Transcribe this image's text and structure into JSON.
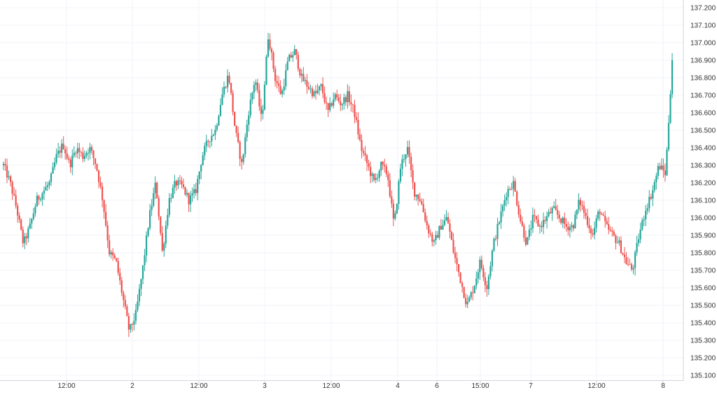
{
  "chart_data": {
    "type": "candlestick",
    "title": "",
    "xlabel": "",
    "ylabel": "",
    "ylim": [
      135.1,
      137.2
    ],
    "y_ticks": [
      137.2,
      137.1,
      137.0,
      136.9,
      136.8,
      136.7,
      136.6,
      136.5,
      136.4,
      136.3,
      136.2,
      136.1,
      136.0,
      135.9,
      135.8,
      135.7,
      135.6,
      135.5,
      135.4,
      135.3,
      135.2,
      135.1
    ],
    "y_tick_labels": [
      "137.200",
      "137.100",
      "137.000",
      "136.900",
      "136.800",
      "136.700",
      "136.600",
      "136.500",
      "136.400",
      "136.300",
      "136.200",
      "136.100",
      "136.000",
      "135.900",
      "135.800",
      "135.700",
      "135.600",
      "135.500",
      "135.400",
      "135.300",
      "135.200",
      "135.100"
    ],
    "x_tick_labels": [
      "12:00",
      "2",
      "12:00",
      "3",
      "12:00",
      "4",
      "6",
      "15:00",
      "7",
      "12:00",
      "8"
    ],
    "grid": true,
    "colors": {
      "up": "#26a69a",
      "down": "#ef5350",
      "grid": "#f0f3fa",
      "axis": "#d1d4dc",
      "text": "#333333"
    },
    "price_path": [
      136.3,
      136.2,
      136.05,
      135.85,
      135.95,
      136.1,
      136.15,
      136.2,
      136.35,
      136.42,
      136.3,
      136.4,
      136.35,
      136.4,
      136.3,
      136.1,
      135.8,
      135.75,
      135.55,
      135.35,
      135.45,
      135.7,
      136.0,
      136.2,
      135.8,
      136.1,
      136.2,
      136.18,
      136.1,
      136.15,
      136.35,
      136.45,
      136.5,
      136.7,
      136.82,
      136.5,
      136.3,
      136.6,
      136.8,
      136.55,
      137.05,
      136.8,
      136.7,
      136.9,
      136.95,
      136.8,
      136.75,
      136.7,
      136.75,
      136.6,
      136.7,
      136.65,
      136.7,
      136.6,
      136.4,
      136.3,
      136.2,
      136.3,
      136.25,
      135.95,
      136.3,
      136.4,
      136.15,
      136.1,
      135.95,
      135.85,
      135.95,
      136.0,
      135.8,
      135.65,
      135.5,
      135.6,
      135.75,
      135.6,
      135.85,
      136.0,
      136.15,
      136.2,
      136.0,
      135.85,
      136.0,
      135.95,
      136.0,
      136.05,
      136.0,
      135.95,
      135.95,
      136.1,
      136.0,
      135.9,
      136.05,
      135.95,
      135.9,
      135.85,
      135.75,
      135.7,
      135.9,
      136.05,
      136.15,
      136.3,
      136.25,
      136.9
    ]
  }
}
